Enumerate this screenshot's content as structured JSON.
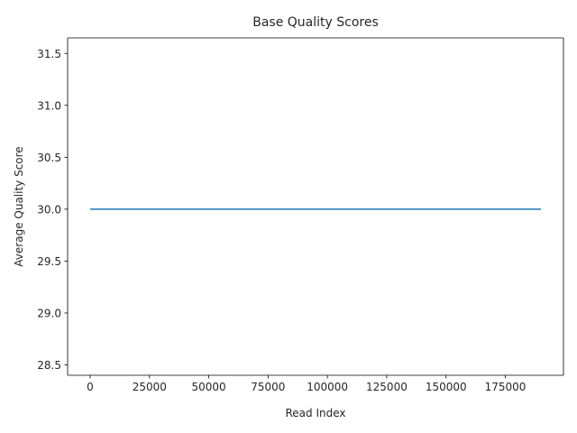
{
  "chart_data": {
    "type": "line",
    "title": "Base Quality Scores",
    "xlabel": "Read Index",
    "ylabel": "Average Quality Score",
    "xlim": [
      -9500,
      199500
    ],
    "ylim": [
      28.4,
      31.65
    ],
    "xticks": [
      0,
      25000,
      50000,
      75000,
      100000,
      125000,
      150000,
      175000
    ],
    "xtick_labels": [
      "0",
      "25000",
      "50000",
      "75000",
      "100000",
      "125000",
      "150000",
      "175000"
    ],
    "yticks": [
      28.5,
      29.0,
      29.5,
      30.0,
      30.5,
      31.0,
      31.5
    ],
    "ytick_labels": [
      "28.5",
      "29.0",
      "29.5",
      "30.0",
      "30.5",
      "31.0",
      "31.5"
    ],
    "grid": false,
    "series": [
      {
        "color": "#1f77b4",
        "x": [
          0,
          190000
        ],
        "y": [
          30.0,
          30.0
        ]
      }
    ]
  }
}
